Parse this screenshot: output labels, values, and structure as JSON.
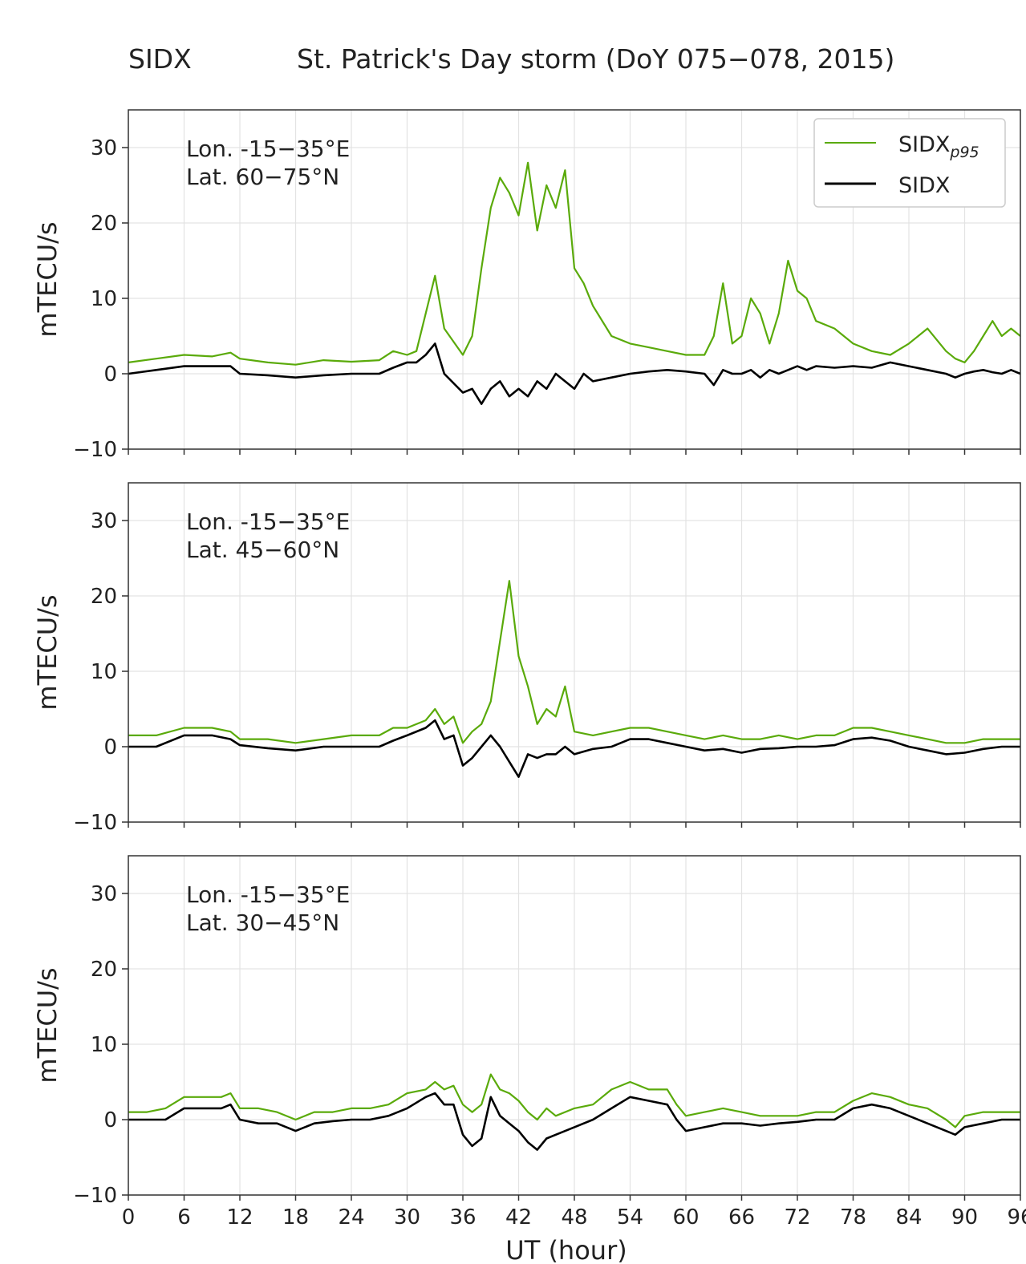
{
  "figure": {
    "left_title": "SIDX",
    "title": "St. Patrick's Day storm (DoY 075−078, 2015)"
  },
  "legend": {
    "p95_label": "SIDX",
    "p95_subscript": "p95",
    "sidx_label": "SIDX",
    "p95_color": "#5aaa0a",
    "sidx_color": "#000000"
  },
  "chart_data": [
    {
      "type": "line",
      "xlabel": "",
      "ylabel": "mTECU/s",
      "xlim": [
        0,
        96
      ],
      "ylim": [
        -10,
        35
      ],
      "yticks": [
        -10,
        0,
        10,
        20,
        30
      ],
      "ytick_labels": [
        "−10",
        "0",
        "10",
        "20",
        "30"
      ],
      "grid": true,
      "legend": "top-right",
      "annotation": {
        "lon": "Lon. -15−35°E",
        "lat": "Lat.   60−75°N"
      },
      "series": [
        {
          "name": "SIDX_p95",
          "color": "#5aaa0a",
          "x": [
            0,
            3,
            6,
            9,
            11,
            12,
            15,
            18,
            21,
            24,
            27,
            28.5,
            30,
            31,
            32,
            33,
            34,
            36,
            37,
            38,
            39,
            40,
            41,
            42,
            43,
            44,
            45,
            46,
            47,
            48,
            49,
            50,
            52,
            54,
            56,
            58,
            60,
            62,
            63,
            64,
            65,
            66,
            67,
            68,
            69,
            70,
            71,
            72,
            73,
            74,
            76,
            78,
            80,
            82,
            84,
            86,
            88,
            89,
            90,
            91,
            92,
            93,
            94,
            95,
            96
          ],
          "y": [
            1.5,
            2,
            2.5,
            2.3,
            2.8,
            2,
            1.5,
            1.2,
            1.8,
            1.6,
            1.8,
            3,
            2.5,
            3,
            8,
            13,
            6,
            2.5,
            5,
            14,
            22,
            26,
            24,
            21,
            28,
            19,
            25,
            22,
            27,
            14,
            12,
            9,
            5,
            4,
            3.5,
            3,
            2.5,
            2.5,
            5,
            12,
            4,
            5,
            10,
            8,
            4,
            8,
            15,
            11,
            10,
            7,
            6,
            4,
            3,
            2.5,
            4,
            6,
            3,
            2,
            1.5,
            3,
            5,
            7,
            5,
            6,
            5
          ]
        },
        {
          "name": "SIDX",
          "color": "#000000",
          "x": [
            0,
            3,
            6,
            9,
            11,
            12,
            15,
            18,
            21,
            24,
            27,
            28.5,
            30,
            31,
            32,
            33,
            34,
            36,
            37,
            38,
            39,
            40,
            41,
            42,
            43,
            44,
            45,
            46,
            47,
            48,
            49,
            50,
            52,
            54,
            56,
            58,
            60,
            62,
            63,
            64,
            65,
            66,
            67,
            68,
            69,
            70,
            71,
            72,
            73,
            74,
            76,
            78,
            80,
            82,
            84,
            86,
            88,
            89,
            90,
            91,
            92,
            93,
            94,
            95,
            96
          ],
          "y": [
            0,
            0.5,
            1,
            1,
            1,
            0,
            -0.2,
            -0.5,
            -0.2,
            0,
            0,
            0.8,
            1.5,
            1.5,
            2.5,
            4,
            0,
            -2.5,
            -2,
            -4,
            -2,
            -1,
            -3,
            -2,
            -3,
            -1,
            -2,
            0,
            -1,
            -2,
            0,
            -1,
            -0.5,
            0,
            0.3,
            0.5,
            0.3,
            0,
            -1.5,
            0.5,
            0,
            0,
            0.5,
            -0.5,
            0.5,
            0,
            0.5,
            1,
            0.5,
            1,
            0.8,
            1,
            0.8,
            1.5,
            1,
            0.5,
            0,
            -0.5,
            0,
            0.3,
            0.5,
            0.2,
            0,
            0.5,
            0
          ]
        }
      ]
    },
    {
      "type": "line",
      "xlabel": "",
      "ylabel": "mTECU/s",
      "xlim": [
        0,
        96
      ],
      "ylim": [
        -10,
        35
      ],
      "yticks": [
        -10,
        0,
        10,
        20,
        30
      ],
      "ytick_labels": [
        "−10",
        "0",
        "10",
        "20",
        "30"
      ],
      "grid": true,
      "annotation": {
        "lon": "Lon. -15−35°E",
        "lat": "Lat.   45−60°N"
      },
      "series": [
        {
          "name": "SIDX_p95",
          "color": "#5aaa0a",
          "x": [
            0,
            3,
            6,
            9,
            11,
            12,
            15,
            18,
            21,
            24,
            27,
            28.5,
            30,
            32,
            33,
            34,
            35,
            36,
            37,
            38,
            39,
            40,
            41,
            42,
            43,
            44,
            45,
            46,
            47,
            48,
            50,
            52,
            54,
            56,
            58,
            60,
            62,
            64,
            66,
            68,
            70,
            72,
            74,
            76,
            78,
            80,
            82,
            84,
            86,
            88,
            90,
            92,
            94,
            96
          ],
          "y": [
            1.5,
            1.5,
            2.5,
            2.5,
            2,
            1,
            1,
            0.5,
            1,
            1.5,
            1.5,
            2.5,
            2.5,
            3.5,
            5,
            3,
            4,
            0.5,
            2,
            3,
            6,
            14,
            22,
            12,
            8,
            3,
            5,
            4,
            8,
            2,
            1.5,
            2,
            2.5,
            2.5,
            2,
            1.5,
            1,
            1.5,
            1,
            1,
            1.5,
            1,
            1.5,
            1.5,
            2.5,
            2.5,
            2,
            1.5,
            1,
            0.5,
            0.5,
            1,
            1,
            1
          ]
        },
        {
          "name": "SIDX",
          "color": "#000000",
          "x": [
            0,
            3,
            6,
            9,
            11,
            12,
            15,
            18,
            21,
            24,
            27,
            28.5,
            30,
            32,
            33,
            34,
            35,
            36,
            37,
            38,
            39,
            40,
            41,
            42,
            43,
            44,
            45,
            46,
            47,
            48,
            50,
            52,
            54,
            56,
            58,
            60,
            62,
            64,
            66,
            68,
            70,
            72,
            74,
            76,
            78,
            80,
            82,
            84,
            86,
            88,
            90,
            92,
            94,
            96
          ],
          "y": [
            0,
            0,
            1.5,
            1.5,
            1,
            0.2,
            -0.2,
            -0.5,
            0,
            0,
            0,
            0.8,
            1.5,
            2.5,
            3.5,
            1,
            1.5,
            -2.5,
            -1.5,
            0,
            1.5,
            0,
            -2,
            -4,
            -1,
            -1.5,
            -1,
            -1,
            0,
            -1,
            -0.3,
            0,
            1,
            1,
            0.5,
            0,
            -0.5,
            -0.3,
            -0.8,
            -0.3,
            -0.2,
            0,
            0,
            0.2,
            1,
            1.2,
            0.8,
            0,
            -0.5,
            -1,
            -0.8,
            -0.3,
            0,
            0
          ]
        }
      ]
    },
    {
      "type": "line",
      "xlabel": "UT (hour)",
      "ylabel": "mTECU/s",
      "xlim": [
        0,
        96
      ],
      "ylim": [
        -10,
        35
      ],
      "yticks": [
        -10,
        0,
        10,
        20,
        30
      ],
      "ytick_labels": [
        "−10",
        "0",
        "10",
        "20",
        "30"
      ],
      "xticks": [
        0,
        6,
        12,
        18,
        24,
        30,
        36,
        42,
        48,
        54,
        60,
        66,
        72,
        78,
        84,
        90,
        96
      ],
      "xtick_labels": [
        "0",
        "6",
        "12",
        "18",
        "24",
        "30",
        "36",
        "42",
        "48",
        "54",
        "60",
        "66",
        "72",
        "78",
        "84",
        "90",
        "96"
      ],
      "grid": true,
      "annotation": {
        "lon": "Lon. -15−35°E",
        "lat": "Lat.   30−45°N"
      },
      "series": [
        {
          "name": "SIDX_p95",
          "color": "#5aaa0a",
          "x": [
            0,
            2,
            4,
            6,
            8,
            10,
            11,
            12,
            14,
            16,
            18,
            20,
            22,
            24,
            26,
            28,
            30,
            32,
            33,
            34,
            35,
            36,
            37,
            38,
            39,
            40,
            41,
            42,
            43,
            44,
            45,
            46,
            48,
            50,
            52,
            54,
            56,
            58,
            59,
            60,
            62,
            64,
            66,
            68,
            70,
            72,
            74,
            76,
            78,
            80,
            82,
            84,
            86,
            88,
            89,
            90,
            92,
            94,
            96
          ],
          "y": [
            1,
            1,
            1.5,
            3,
            3,
            3,
            3.5,
            1.5,
            1.5,
            1,
            0,
            1,
            1,
            1.5,
            1.5,
            2,
            3.5,
            4,
            5,
            4,
            4.5,
            2,
            1,
            2,
            6,
            4,
            3.5,
            2.5,
            1,
            0,
            1.5,
            0.5,
            1.5,
            2,
            4,
            5,
            4,
            4,
            2,
            0.5,
            1,
            1.5,
            1,
            0.5,
            0.5,
            0.5,
            1,
            1,
            2.5,
            3.5,
            3,
            2,
            1.5,
            0,
            -1,
            0.5,
            1,
            1,
            1
          ]
        },
        {
          "name": "SIDX",
          "color": "#000000",
          "x": [
            0,
            2,
            4,
            6,
            8,
            10,
            11,
            12,
            14,
            16,
            18,
            20,
            22,
            24,
            26,
            28,
            30,
            32,
            33,
            34,
            35,
            36,
            37,
            38,
            39,
            40,
            41,
            42,
            43,
            44,
            45,
            46,
            48,
            50,
            52,
            54,
            56,
            58,
            59,
            60,
            62,
            64,
            66,
            68,
            70,
            72,
            74,
            76,
            78,
            80,
            82,
            84,
            86,
            88,
            89,
            90,
            92,
            94,
            96
          ],
          "y": [
            0,
            0,
            0,
            1.5,
            1.5,
            1.5,
            2,
            0,
            -0.5,
            -0.5,
            -1.5,
            -0.5,
            -0.2,
            0,
            0,
            0.5,
            1.5,
            3,
            3.5,
            2,
            2,
            -2,
            -3.5,
            -2.5,
            3,
            0.5,
            -0.5,
            -1.5,
            -3,
            -4,
            -2.5,
            -2,
            -1,
            0,
            1.5,
            3,
            2.5,
            2,
            0,
            -1.5,
            -1,
            -0.5,
            -0.5,
            -0.8,
            -0.5,
            -0.3,
            0,
            0,
            1.5,
            2,
            1.5,
            0.5,
            -0.5,
            -1.5,
            -2,
            -1,
            -0.5,
            0,
            0
          ]
        }
      ]
    }
  ]
}
